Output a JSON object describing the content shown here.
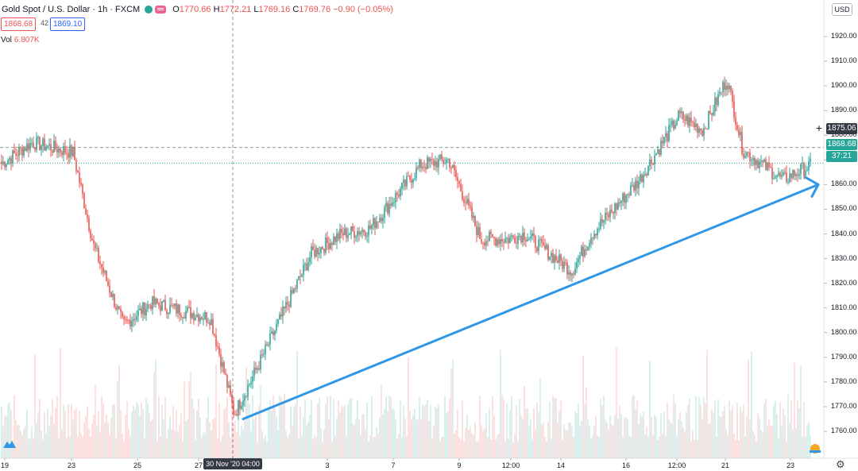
{
  "header": {
    "symbol": "Gold Spot / U.S. Dollar · 1h · FXCM",
    "open_label": "O",
    "open": "1770.66",
    "high_label": "H",
    "high": "1772.21",
    "low_label": "L",
    "low": "1769.16",
    "close_label": "C",
    "close": "1769.76",
    "change": "−0.90 (−0.05%)"
  },
  "prices": {
    "bid": "1868.68",
    "spread": "42",
    "ask": "1869.10"
  },
  "volume": {
    "label": "Vol",
    "value": "6.807K"
  },
  "currency": "USD",
  "price_axis": {
    "ticks": [
      "1920.00",
      "1910.00",
      "1900.00",
      "1890.00",
      "1880.00",
      "1870.00",
      "1860.00",
      "1850.00",
      "1840.00",
      "1830.00",
      "1820.00",
      "1810.00",
      "1800.00",
      "1790.00",
      "1780.00",
      "1770.00",
      "1760.00"
    ],
    "crosshair_price": "1875.06",
    "last_price": "1868.68",
    "countdown": "37:21"
  },
  "time_axis": {
    "ticks": [
      "19",
      "23",
      "25",
      "27",
      "3",
      "7",
      "9",
      "12:00",
      "14",
      "16",
      "12:00",
      "21",
      "23"
    ],
    "crosshair_time": "30 Nov '20  04:00"
  },
  "colors": {
    "up": "#26a69a",
    "down": "#ef5350",
    "trendline": "#2f97e8",
    "grid": "#f0f3fa"
  },
  "icons": [
    "tradingview-logo-icon",
    "settings-gear-icon",
    "crosshair-plus-icon"
  ],
  "chart_data": {
    "type": "candlestick",
    "timeframe": "1h",
    "ylim": [
      1755,
      1925
    ],
    "key_prices": [
      {
        "x": "19",
        "y": 1868
      },
      {
        "x": "21",
        "y": 1877
      },
      {
        "x": "23",
        "y": 1873
      },
      {
        "x": "24",
        "y": 1835
      },
      {
        "x": "25",
        "y": 1803
      },
      {
        "x": "26",
        "y": 1812
      },
      {
        "x": "27",
        "y": 1806
      },
      {
        "x": "30",
        "y": 1767
      },
      {
        "x": "1",
        "y": 1790
      },
      {
        "x": "2",
        "y": 1832
      },
      {
        "x": "3",
        "y": 1840
      },
      {
        "x": "4",
        "y": 1842
      },
      {
        "x": "7",
        "y": 1868
      },
      {
        "x": "8",
        "y": 1870
      },
      {
        "x": "9",
        "y": 1838
      },
      {
        "x": "10",
        "y": 1838
      },
      {
        "x": "11",
        "y": 1840
      },
      {
        "x": "14",
        "y": 1825
      },
      {
        "x": "15",
        "y": 1840
      },
      {
        "x": "16",
        "y": 1862
      },
      {
        "x": "17",
        "y": 1888
      },
      {
        "x": "18",
        "y": 1882
      },
      {
        "x": "21",
        "y": 1903
      },
      {
        "x": "22",
        "y": 1874
      },
      {
        "x": "23",
        "y": 1862
      },
      {
        "x": "24",
        "y": 1868
      }
    ],
    "horizontal_line": 1875.06,
    "trendline": {
      "from": {
        "x": "30",
        "y": 1765
      },
      "to": {
        "x": "24",
        "y": 1860
      }
    }
  }
}
